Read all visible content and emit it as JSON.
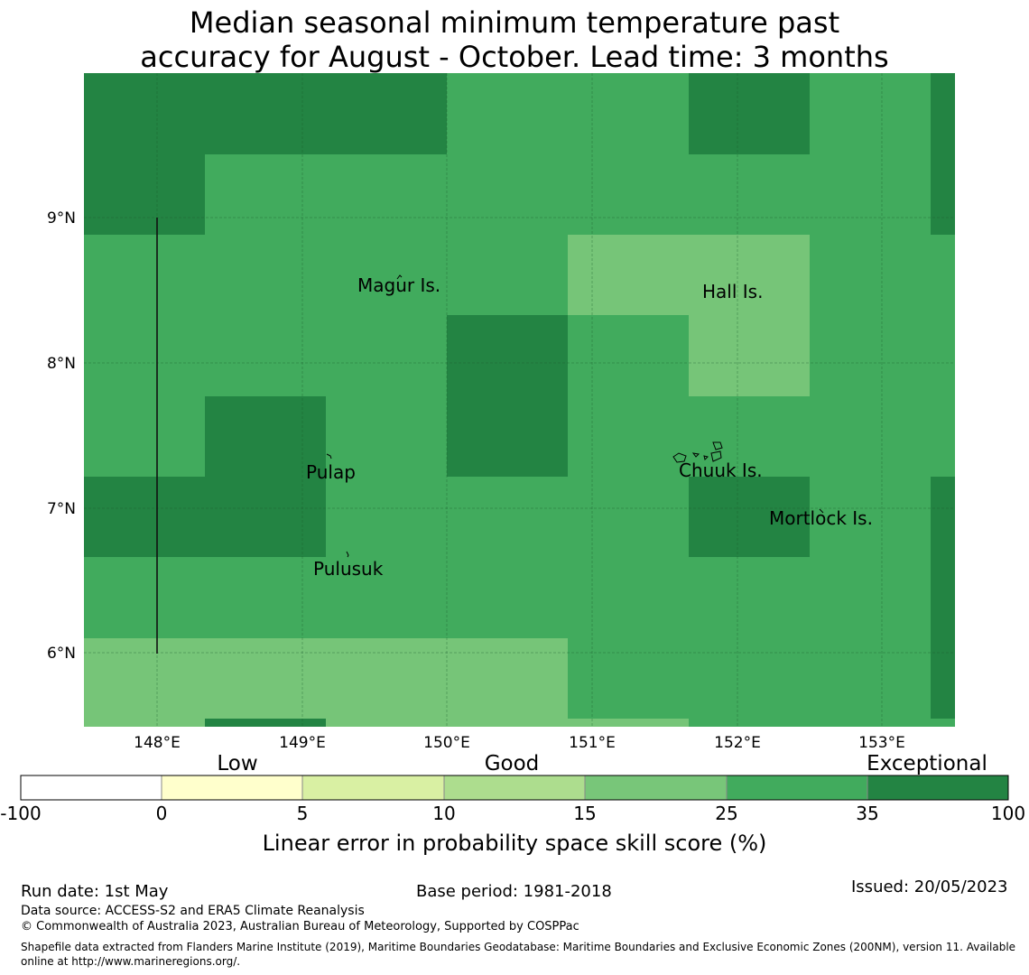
{
  "title_line1": "Median seasonal minimum temperature past",
  "title_line2": "accuracy for August - October. Lead time: 3 months",
  "map": {
    "lon_range": [
      147.5,
      153.5
    ],
    "lat_range": [
      5.5,
      10.0
    ],
    "x_ticks": [
      "148°E",
      "149°E",
      "150°E",
      "151°E",
      "152°E",
      "153°E"
    ],
    "y_ticks": [
      "9°N",
      "8°N",
      "7°N",
      "6°N"
    ],
    "grid": true,
    "places": [
      {
        "name": "Magur Is.",
        "lon": 149.38,
        "lat": 8.52
      },
      {
        "name": "Hall Is.",
        "lon": 151.78,
        "lat": 8.48
      },
      {
        "name": "Pulap",
        "lon": 149.03,
        "lat": 7.23
      },
      {
        "name": "Chuuk Is.",
        "lon": 151.6,
        "lat": 7.25
      },
      {
        "name": "Mortlock Is.",
        "lon": 152.22,
        "lat": 6.92
      },
      {
        "name": "Pulusuk",
        "lon": 149.08,
        "lat": 6.58
      }
    ],
    "skill_classes": {
      "c25": "#76c578",
      "c35": "#41ab5d",
      "c100": "#238443"
    }
  },
  "colorbar": {
    "categories": [
      "Low",
      "Good",
      "Exceptional"
    ],
    "ticks": [
      "-100",
      "0",
      "5",
      "10",
      "15",
      "25",
      "35",
      "100"
    ],
    "colors": [
      "#ffffff",
      "#ffffcc",
      "#d9f0a3",
      "#addd8e",
      "#78c679",
      "#41ab5d",
      "#238443"
    ],
    "label": "Linear error in probability space skill score (%)"
  },
  "footer": {
    "run_date": "Run date: 1st May",
    "base_period": "Base period: 1981-2018",
    "issued": "Issued: 20/05/2023",
    "data_source": "Data source: ACCESS-S2 and ERA5 Climate Reanalysis",
    "copyright": "© Commonwealth of Australia 2023, Australian Bureau of Meteorology, Supported by COSPPac",
    "shapefile_1": "Shapefile data extracted from Flanders Marine Institute (2019), Maritime Boundaries Geodatabase: Maritime Boundaries and Exclusive Economic Zones (200NM), version 11. Available",
    "shapefile_2": "online at http://www.marineregions.org/."
  }
}
